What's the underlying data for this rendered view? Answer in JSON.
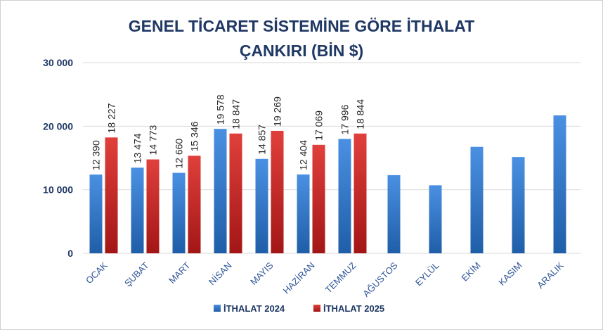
{
  "chart_data": {
    "type": "bar",
    "title_line1": "GENEL TİCARET SİSTEMİNE GÖRE İTHALAT",
    "title_line2": "ÇANKIRI (BİN $)",
    "categories": [
      "OCAK",
      "ŞUBAT",
      "MART",
      "NİSAN",
      "MAYIS",
      "HAZİRAN",
      "TEMMUZ",
      "AĞUSTOS",
      "EYLÜL",
      "EKİM",
      "KASIM",
      "ARALIK"
    ],
    "series": [
      {
        "name": "İTHALAT 2024",
        "color": "#2e75b6",
        "values": [
          12390,
          13474,
          12660,
          19578,
          14857,
          12404,
          17996,
          12300,
          10700,
          16750,
          15150,
          21700
        ],
        "labels": [
          "12 390",
          "13 474",
          "12 660",
          "19 578",
          "14 857",
          "12 404",
          "17 996",
          null,
          null,
          null,
          null,
          null
        ]
      },
      {
        "name": "İTHALAT 2025",
        "color": "#c00000",
        "values": [
          18227,
          14773,
          15346,
          18847,
          19269,
          17069,
          18844,
          null,
          null,
          null,
          null,
          null
        ],
        "labels": [
          "18 227",
          "14 773",
          "15 346",
          "18 847",
          "19 269",
          "17 069",
          "18 844",
          null,
          null,
          null,
          null,
          null
        ]
      }
    ],
    "yticks": [
      "0",
      "10 000",
      "20 000",
      "30 000"
    ],
    "ytick_values": [
      0,
      10000,
      20000,
      30000
    ],
    "ylim": [
      0,
      30000
    ],
    "grid": true,
    "legend": "bottom"
  }
}
